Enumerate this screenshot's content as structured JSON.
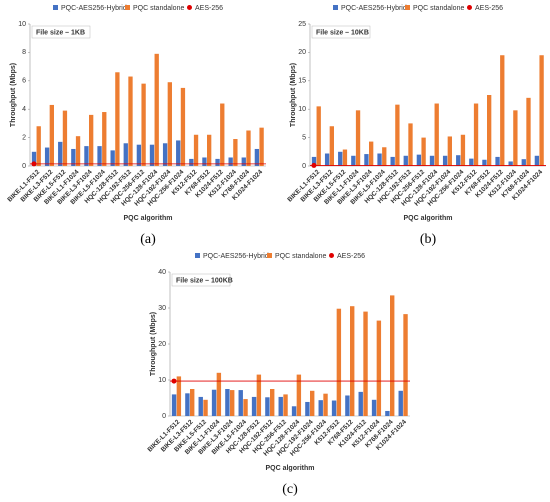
{
  "chart_data": [
    {
      "type": "bar",
      "caption": "(a)",
      "annotation": "File size – 1KB",
      "xlabel": "PQC algorithm",
      "ylabel": "Throughput (Mbps)",
      "categories": [
        "BIKE-L1-F512",
        "BIKE-L3-F512",
        "BIKE-L5-F512",
        "BIKE-L1-F1024",
        "BIKE-L3-F1024",
        "BIKE-L5-F1024",
        "HQC-128-F512",
        "HQC-192-F512",
        "HQC-256-F512",
        "HQC-128-F1024",
        "HQC-192-F1024",
        "HQC-256-F1024",
        "K512-F512",
        "K768-F512",
        "K1024-F512",
        "K512-F1024",
        "K768-F1024",
        "K1024-F1024"
      ],
      "series": [
        {
          "name": "PQC-AES256-Hybrid",
          "color": "#4472c4",
          "values": [
            1.0,
            1.3,
            1.7,
            1.2,
            1.4,
            1.4,
            1.1,
            1.6,
            1.5,
            1.5,
            1.6,
            1.8,
            0.5,
            0.6,
            0.5,
            0.6,
            0.6,
            1.2
          ]
        },
        {
          "name": "PQC standalone",
          "color": "#ed7d31",
          "values": [
            2.8,
            4.3,
            3.9,
            2.1,
            3.6,
            3.8,
            6.6,
            6.3,
            5.8,
            7.9,
            5.9,
            5.5,
            2.2,
            2.2,
            4.4,
            1.9,
            2.5,
            2.7
          ]
        }
      ],
      "reference": {
        "name": "AES-256",
        "color": "#e00000",
        "value": 0.15
      },
      "ylim": [
        0,
        10
      ],
      "yticks": [
        0,
        2,
        4,
        6,
        8,
        10
      ],
      "grid": false
    },
    {
      "type": "bar",
      "caption": "(b)",
      "annotation": "File size – 10KB",
      "xlabel": "PQC algorithm",
      "ylabel": "Throughput (Mbps)",
      "categories": [
        "BIKE-L1-F512",
        "BIKE-L3-F512",
        "BIKE-L5-F512",
        "BIKE-L1-F1024",
        "BIKE-L3-F1024",
        "BIKE-L5-F1024",
        "HQC-128-F512",
        "HQC-192-F512",
        "HQC-256-F512",
        "HQC-128-F1024",
        "HQC-192-F1024",
        "HQC-256-F1024",
        "K512-F512",
        "K768-F512",
        "K1024-F512",
        "K512-F1024",
        "K768-F1024",
        "K1024-F1024"
      ],
      "series": [
        {
          "name": "PQC-AES256-Hybrid",
          "color": "#4472c4",
          "values": [
            1.6,
            2.2,
            2.5,
            1.8,
            2.1,
            2.2,
            1.6,
            1.8,
            2.0,
            1.8,
            1.8,
            1.9,
            1.3,
            1.1,
            1.6,
            0.8,
            1.2,
            1.8
          ]
        },
        {
          "name": "PQC standalone",
          "color": "#ed7d31",
          "values": [
            10.5,
            7.0,
            2.9,
            9.8,
            4.3,
            3.3,
            10.8,
            7.5,
            5.0,
            11.0,
            5.2,
            5.5,
            11.0,
            12.5,
            19.5,
            9.8,
            12.0,
            19.5
          ]
        }
      ],
      "reference": {
        "name": "AES-256",
        "color": "#e00000",
        "value": 0.1
      },
      "ylim": [
        0,
        25
      ],
      "yticks": [
        0,
        5,
        10,
        15,
        20,
        25
      ],
      "grid": false
    },
    {
      "type": "bar",
      "caption": "(c)",
      "annotation": "File size – 100KB",
      "xlabel": "PQC algorithm",
      "ylabel": "Throughput (Mbps)",
      "categories": [
        "BIKE-L1-F512",
        "BIKE-L3-F512",
        "BIKE-L5-F512",
        "BIKE-L1-F1024",
        "BIKE-L3-F1024",
        "BIKE-L5-F1024",
        "HQC-128-F512",
        "HQC-192-F512",
        "HQC-256-F512",
        "HQC-128-F1024",
        "HQC-192-F1024",
        "HQC-256-F1024",
        "K512-F512",
        "K768-F512",
        "K1024-F512",
        "K512-F1024",
        "K768-F1024",
        "K1024-F1024"
      ],
      "series": [
        {
          "name": "PQC-AES256-Hybrid",
          "color": "#4472c4",
          "values": [
            6.0,
            6.3,
            5.3,
            7.3,
            7.5,
            7.2,
            5.3,
            5.2,
            5.3,
            2.7,
            3.9,
            4.4,
            4.3,
            5.7,
            6.7,
            4.5,
            1.4,
            7.0
          ]
        },
        {
          "name": "PQC standalone",
          "color": "#ed7d31",
          "values": [
            11.0,
            7.5,
            4.5,
            12.0,
            7.2,
            4.7,
            11.5,
            7.5,
            6.0,
            11.5,
            7.0,
            6.2,
            29.8,
            30.5,
            29.0,
            26.5,
            33.5,
            28.3
          ]
        }
      ],
      "reference": {
        "name": "AES-256",
        "color": "#e00000",
        "value": 9.7
      },
      "ylim": [
        0,
        40
      ],
      "yticks": [
        0,
        10,
        20,
        30,
        40
      ],
      "grid": false
    }
  ]
}
